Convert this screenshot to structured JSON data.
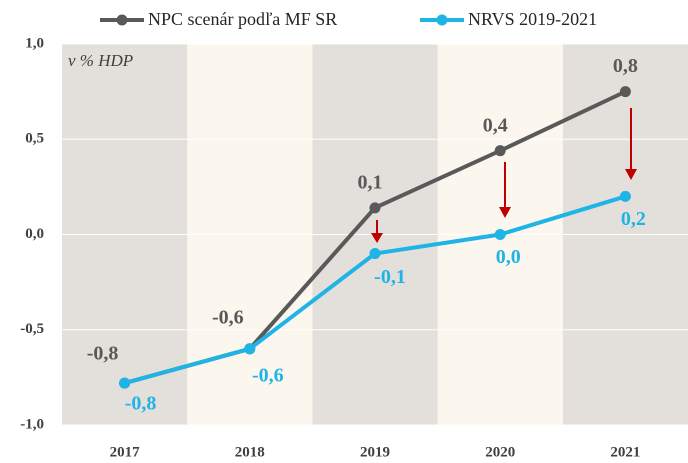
{
  "chart_data": {
    "type": "line",
    "annotation": "v % HDP",
    "categories": [
      "2017",
      "2018",
      "2019",
      "2020",
      "2021"
    ],
    "series": [
      {
        "name": "NPC scenár podľa MF SR",
        "color": "#595959",
        "values": [
          -0.78,
          -0.6,
          0.14,
          0.44,
          0.75
        ],
        "value_labels": [
          "-0,8",
          "-0,6",
          "0,1",
          "0,4",
          "0,8"
        ]
      },
      {
        "name": "NRVS 2019-2021",
        "color": "#1fb4e6",
        "values": [
          -0.78,
          -0.6,
          -0.1,
          0.0,
          0.2
        ],
        "value_labels": [
          "-0,8",
          "-0,6",
          "-0,1",
          "0,0",
          "0,2"
        ]
      }
    ],
    "ylim": [
      -1.0,
      1.0
    ],
    "yticks": [
      {
        "value": -1.0,
        "label": "-1,0"
      },
      {
        "value": -0.5,
        "label": "-0,5"
      },
      {
        "value": 0.0,
        "label": "0,0"
      },
      {
        "value": 0.5,
        "label": "0,5"
      },
      {
        "value": 1.0,
        "label": "1,0"
      }
    ]
  }
}
